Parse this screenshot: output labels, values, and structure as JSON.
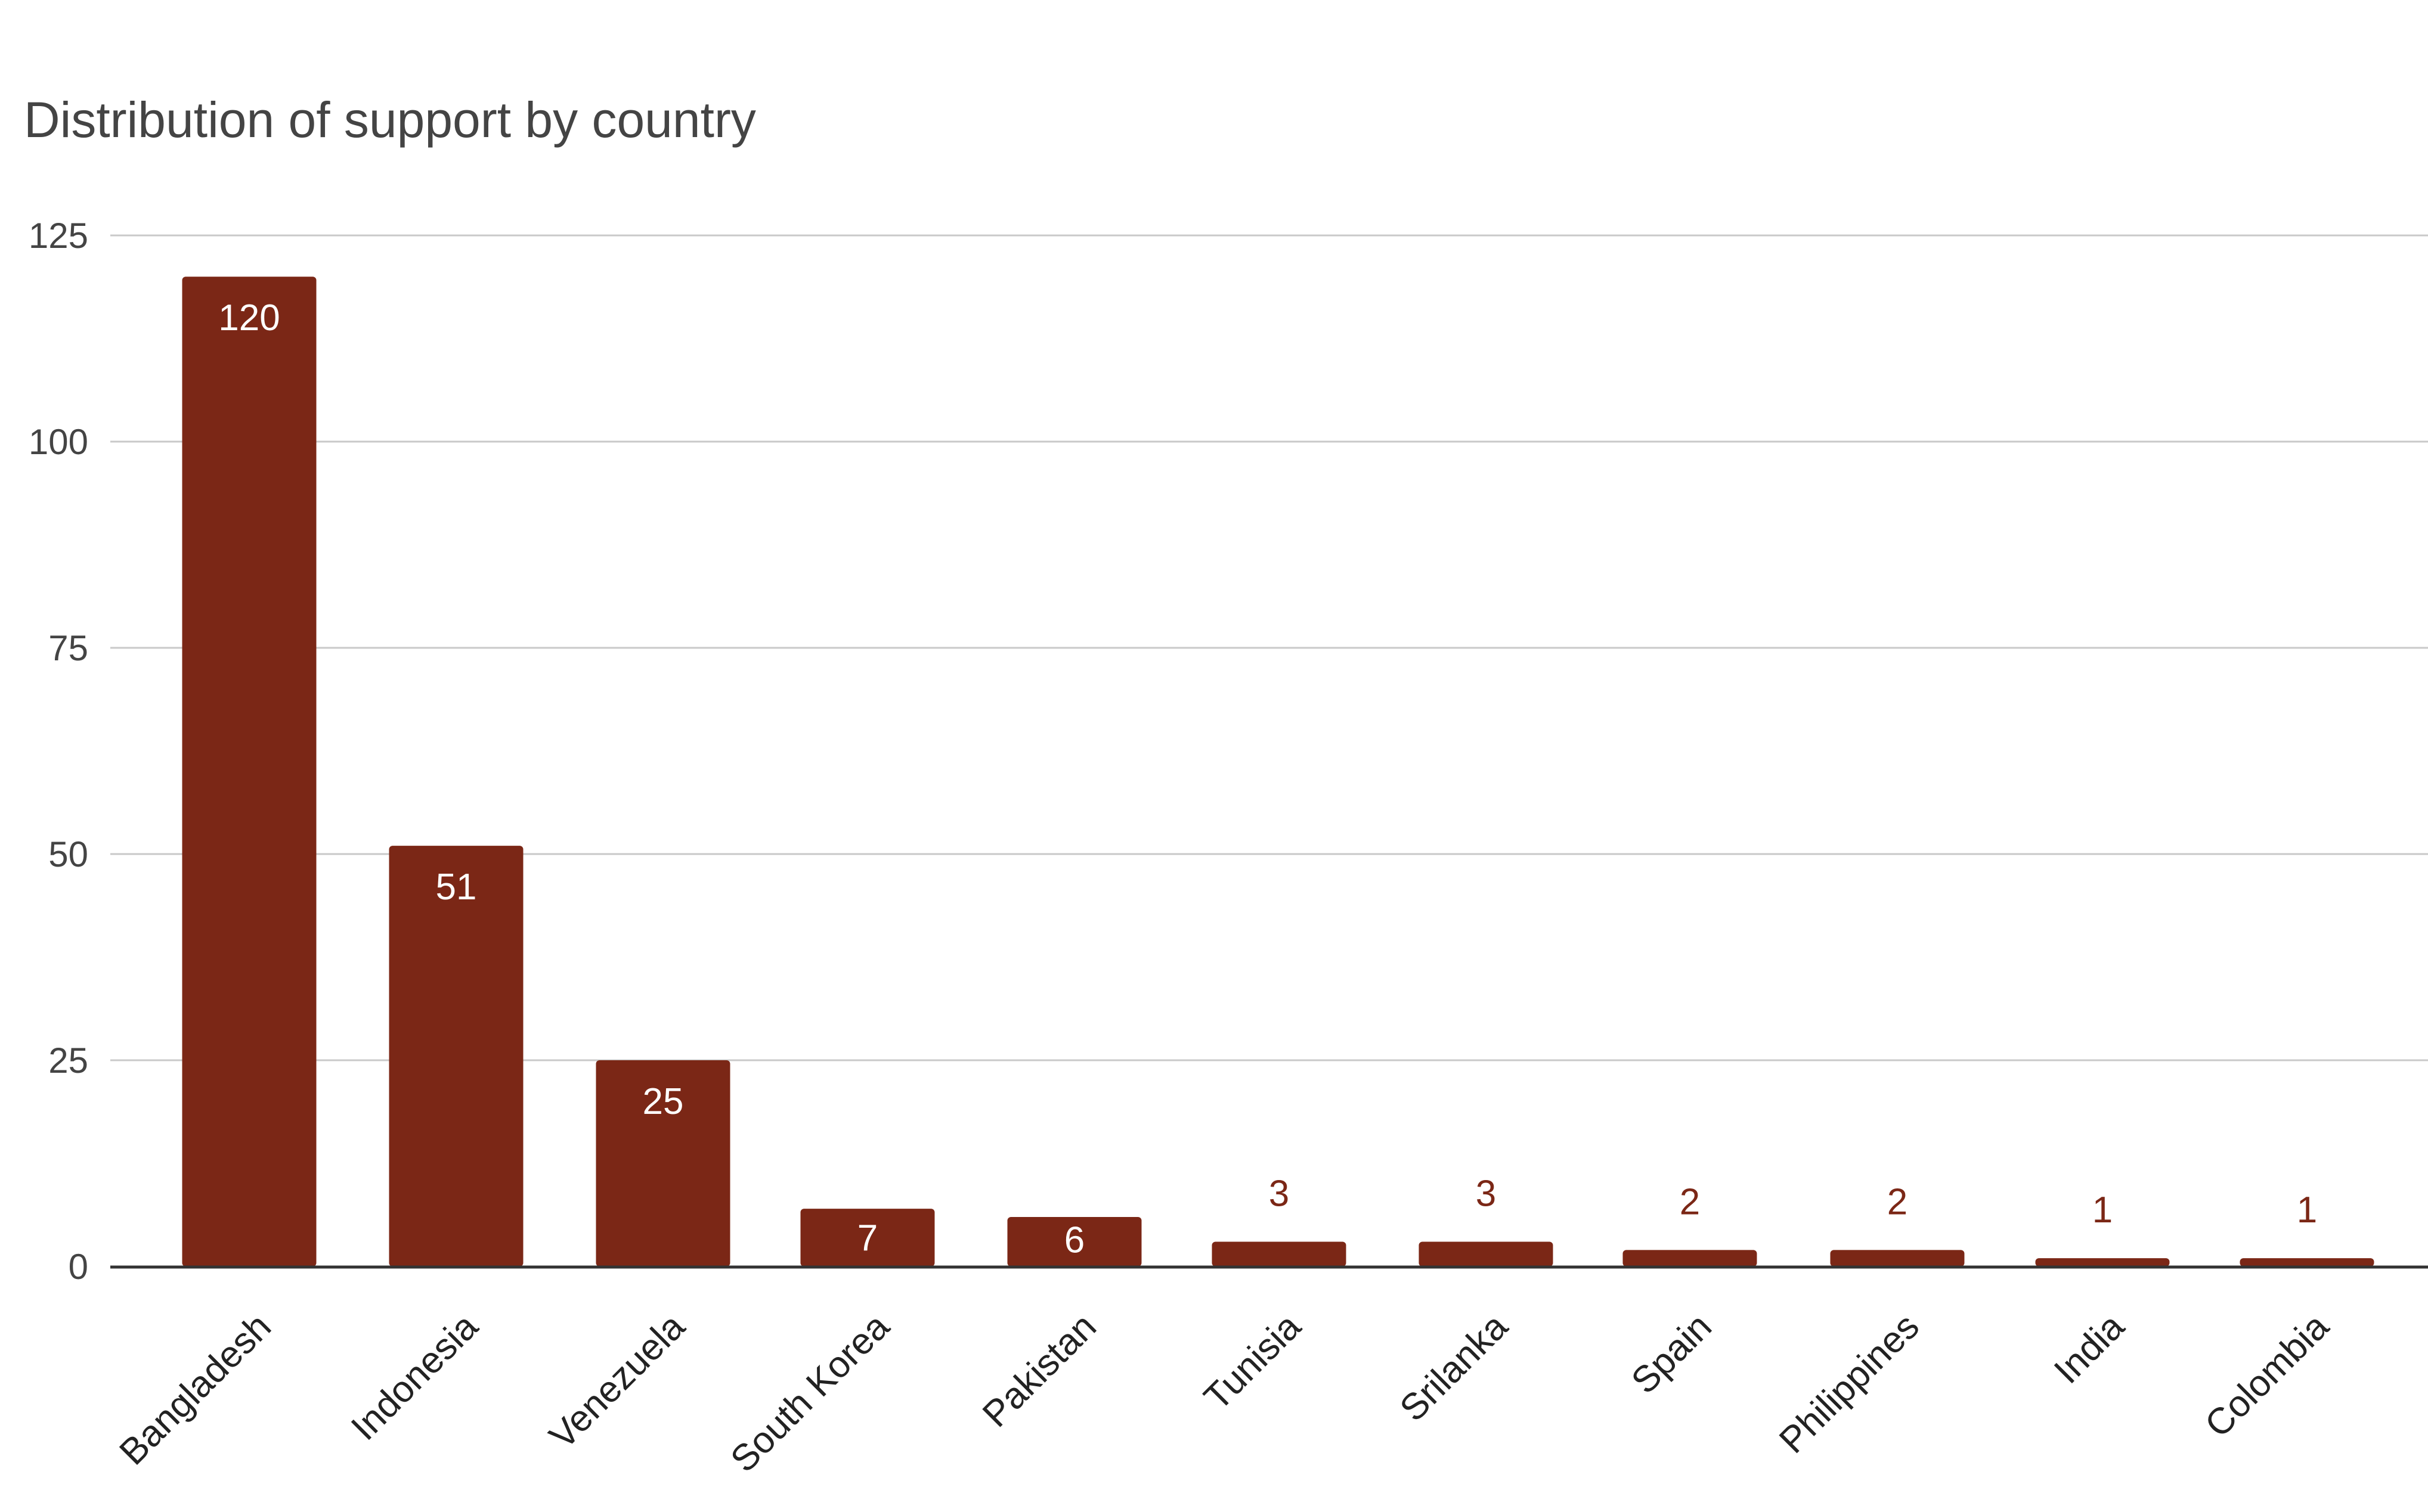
{
  "chart_data": {
    "type": "bar",
    "title": "Distribution of support by country",
    "xlabel": "",
    "ylabel": "",
    "ylim": [
      0,
      125
    ],
    "yticks": [
      0,
      25,
      50,
      75,
      100,
      125
    ],
    "grid": true,
    "legend": "none",
    "categories": [
      "Bangladesh",
      "Indonesia",
      "Venezuela",
      "South Korea",
      "Pakistan",
      "Tunisia",
      "Srilanka",
      "Spain",
      "Philippines",
      "India",
      "Colombia"
    ],
    "series": [
      {
        "values": [
          120,
          51,
          25,
          7,
          6,
          3,
          3,
          2,
          2,
          1,
          1
        ]
      }
    ],
    "colors": {
      "bar": "#7b2716",
      "label_inside": "#ffffff",
      "label_outside": "#7b2716",
      "grid": "#c9c9c9",
      "axis": "#333333",
      "text": "#444444"
    }
  }
}
